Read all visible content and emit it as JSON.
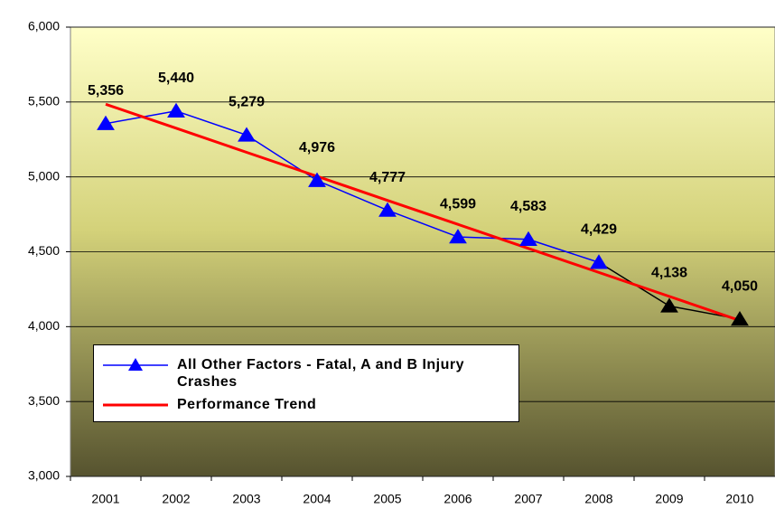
{
  "chart_data": {
    "type": "line",
    "categories": [
      "2001",
      "2002",
      "2003",
      "2004",
      "2005",
      "2006",
      "2007",
      "2008",
      "2009",
      "2010"
    ],
    "series": [
      {
        "name": "All Other Factors - Fatal, A and B Injury Crashes",
        "color": "#0000ff",
        "values": [
          5356,
          5440,
          5279,
          4976,
          4777,
          4599,
          4583,
          4429,
          4138,
          4050
        ],
        "value_labels": [
          "5,356",
          "5,440",
          "5,279",
          "4,976",
          "4,777",
          "4,599",
          "4,583",
          "4,429",
          "4,138",
          "4,050"
        ],
        "marker": "triangle",
        "marker_colors": [
          "#0000ff",
          "#0000ff",
          "#0000ff",
          "#0000ff",
          "#0000ff",
          "#0000ff",
          "#0000ff",
          "#0000ff",
          "#000000",
          "#000000"
        ]
      },
      {
        "name": "Performance Trend",
        "color": "#ff0000",
        "values": [
          5485,
          5325,
          5164,
          5004,
          4843,
          4683,
          4522,
          4362,
          4202,
          4041
        ]
      }
    ],
    "ylim": [
      3000,
      6000
    ],
    "yticks": [
      {
        "value": 3000,
        "label": "3,000"
      },
      {
        "value": 3500,
        "label": "3,500"
      },
      {
        "value": 4000,
        "label": "4,000"
      },
      {
        "value": 4500,
        "label": "4,500"
      },
      {
        "value": 5000,
        "label": "5,000"
      },
      {
        "value": 5500,
        "label": "5,500"
      },
      {
        "value": 6000,
        "label": "6,000"
      }
    ],
    "grid": true,
    "legend": "lower-left"
  }
}
